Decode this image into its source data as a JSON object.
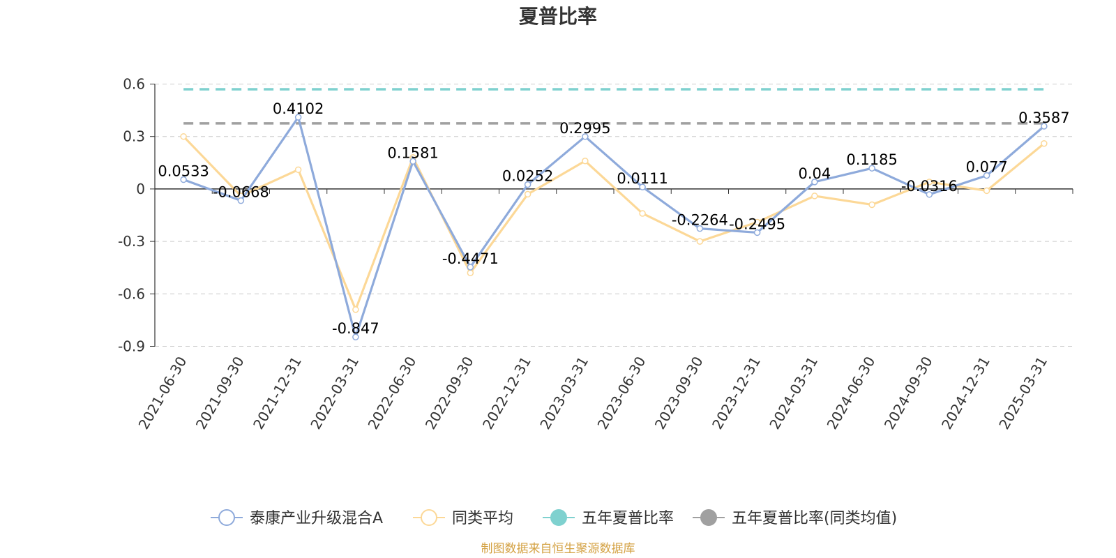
{
  "chart_data": {
    "type": "line",
    "title": "夏普比率",
    "categories": [
      "2021-06-30",
      "2021-09-30",
      "2021-12-31",
      "2022-03-31",
      "2022-06-30",
      "2022-09-30",
      "2022-12-31",
      "2023-03-31",
      "2023-06-30",
      "2023-09-30",
      "2023-12-31",
      "2024-03-31",
      "2024-06-30",
      "2024-09-30",
      "2024-12-31",
      "2025-03-31"
    ],
    "y_ticks": [
      "0.6",
      "0.3",
      "0",
      "-0.3",
      "-0.6",
      "-0.9"
    ],
    "ylim": [
      -0.9,
      0.6
    ],
    "grid": true,
    "legend_position": "bottom",
    "series": [
      {
        "name": "泰康产业升级混合A",
        "color": "#8eaadb",
        "values": [
          0.0533,
          -0.0668,
          0.4102,
          -0.847,
          0.1581,
          -0.4471,
          0.0252,
          0.2995,
          0.0111,
          -0.2264,
          -0.2495,
          0.04,
          0.1185,
          -0.0316,
          0.077,
          0.3587
        ],
        "data_labels": [
          "0.0533",
          "-0.0668",
          "0.4102",
          "-0.847",
          "0.1581",
          "-0.4471",
          "0.0252",
          "0.2995",
          "0.0111",
          "-0.2264",
          "-0.2495",
          "0.04",
          "0.1185",
          "-0.0316",
          "0.077",
          "0.3587"
        ]
      },
      {
        "name": "同类平均",
        "color": "#fcd897",
        "values": [
          0.3,
          -0.04,
          0.11,
          -0.69,
          0.18,
          -0.48,
          -0.03,
          0.16,
          -0.14,
          -0.3,
          -0.19,
          -0.04,
          -0.09,
          0.04,
          -0.01,
          0.26
        ]
      },
      {
        "name": "五年夏普比率",
        "color": "#7fd1cf",
        "reference_value": 0.57
      },
      {
        "name": "五年夏普比率(同类均值)",
        "color": "#a0a0a0",
        "reference_value": 0.375
      }
    ]
  },
  "source_text": "制图数据来自恒生聚源数据库",
  "source_color": "#d4a244"
}
